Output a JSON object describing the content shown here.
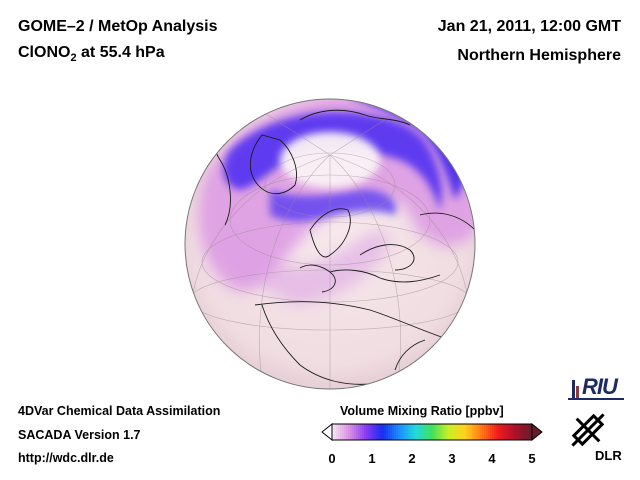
{
  "header": {
    "title": "GOME–2 / MetOp Analysis",
    "species_main": "ClONO",
    "species_sub": "2",
    "species_rest": " at 55.4 hPa",
    "date": "Jan 21, 2011, 12:00 GMT",
    "region": "Northern Hemisphere"
  },
  "footer": {
    "line1": "4DVar Chemical Data Assimilation",
    "line2": "SACADA Version 1.7",
    "line3": "http://wdc.dlr.de"
  },
  "colorbar": {
    "title": "Volume Mixing Ratio [ppbv]",
    "ticks": [
      "0",
      "1",
      "2",
      "3",
      "4",
      "5"
    ],
    "min": 0,
    "max": 5,
    "colors": [
      "#f5e6ef",
      "#d98ee3",
      "#8a3cf0",
      "#1a2cf0",
      "#1e8cff",
      "#22d8e0",
      "#3ee060",
      "#c8f028",
      "#ffd21e",
      "#ff7a14",
      "#f01c1c",
      "#b0102a",
      "#6a1a2a"
    ]
  },
  "map": {
    "projection": "orthographic",
    "center_lat": 55,
    "center_lon": 20,
    "land_color": "#f3e4e6",
    "ocean_color": "#f7ebec"
  },
  "logos": {
    "riu": "RIU",
    "dlr": "DLR"
  }
}
